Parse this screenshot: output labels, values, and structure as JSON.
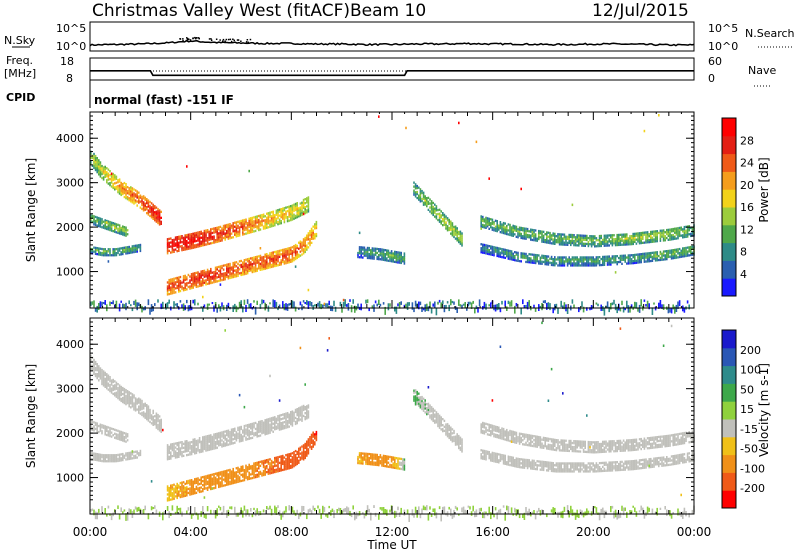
{
  "header": {
    "station": "Christmas Valley West (fitACF)",
    "beam": "Beam 10",
    "date": "12/Jul/2015"
  },
  "summary": {
    "nsky_label": "N.Sky",
    "nsearch_label": "N.Search",
    "freq_label_1": "Freq.",
    "freq_label_2": "[MHz]",
    "nave_label": "Nave",
    "cpid_label": "CPID",
    "cpid_value": "normal (fast) -151 IF",
    "noise_ticks": [
      "10^5",
      "10^0"
    ],
    "freq_ticks": [
      "18",
      "8"
    ],
    "nave_ticks": [
      "60",
      "0"
    ]
  },
  "axes": {
    "xlabel": "Time UT",
    "ylabel": "Slant Range [km]",
    "x_tick_labels": [
      "00:00",
      "04:00",
      "08:00",
      "12:00",
      "16:00",
      "20:00",
      "00:00"
    ],
    "y_tick_labels": [
      "1000",
      "2000",
      "3000",
      "4000"
    ]
  },
  "colorbars": {
    "power": {
      "title": "Power [dB]",
      "ticks": [
        "4",
        "8",
        "12",
        "16",
        "20",
        "24",
        "28"
      ],
      "colors": [
        "#1a1aff",
        "#2a5fb0",
        "#2e8b87",
        "#4fa84a",
        "#9ccc3c",
        "#f2d21a",
        "#f59d1c",
        "#ef5a18",
        "#e31f14",
        "#ff0000"
      ]
    },
    "velocity": {
      "title": "Velocity [m s-1]",
      "ticks": [
        "200",
        "100",
        "50",
        "15",
        "-15",
        "-50",
        "-100",
        "-200"
      ],
      "colors": [
        "#1a1acc",
        "#2a57b5",
        "#2e8b8b",
        "#3da84a",
        "#8fd13c",
        "#c0c0bb",
        "#f0c018",
        "#f09018",
        "#ef5a18",
        "#ff0000"
      ]
    }
  },
  "chart_data": [
    {
      "type": "line",
      "title": "N.Sky / N.Search",
      "x_unit": "hours UT",
      "xlim": [
        0,
        24
      ],
      "ylim_log10": [
        0,
        5
      ],
      "series": [
        {
          "name": "N.Sky",
          "x": [
            0,
            1,
            2,
            3,
            4,
            5,
            6,
            7,
            8,
            9,
            10,
            11,
            12,
            13,
            14,
            15,
            16,
            17,
            18,
            19,
            20,
            21,
            22,
            23,
            24
          ],
          "y_log10": [
            0.8,
            0.9,
            1.0,
            1.2,
            1.6,
            1.3,
            1.2,
            1.1,
            1.1,
            1.0,
            1.0,
            0.9,
            0.9,
            1.0,
            1.0,
            1.1,
            1.0,
            1.0,
            0.9,
            0.9,
            1.0,
            1.0,
            0.9,
            0.8,
            0.8
          ]
        }
      ]
    },
    {
      "type": "line",
      "title": "Freq. / Nave",
      "x_unit": "hours UT",
      "xlim": [
        0,
        24
      ],
      "ylim_freq_mhz": [
        8,
        18
      ],
      "series": [
        {
          "name": "Freq.",
          "x": [
            0,
            2.4,
            2.5,
            12.5,
            12.6,
            24
          ],
          "y": [
            12,
            12,
            9.5,
            9.5,
            12,
            12
          ]
        }
      ]
    },
    {
      "type": "heatmap",
      "title": "Power [dB]",
      "x_unit": "hours UT",
      "y_unit": "km",
      "xlim": [
        0,
        24
      ],
      "ylim": [
        180,
        4590
      ],
      "value_range": [
        0,
        30
      ],
      "scatter_bands": [
        {
          "t": [
            0.0,
            0.4,
            0.8,
            1.2,
            1.6,
            2.0,
            2.4,
            2.8
          ],
          "r": [
            3600,
            3300,
            3100,
            2900,
            2750,
            2600,
            2400,
            2200
          ],
          "thickness_km": 340,
          "power_db": [
            14,
            16,
            18,
            20,
            22,
            24,
            26,
            28
          ]
        },
        {
          "t": [
            0.0,
            0.5,
            1.0,
            1.5
          ],
          "r": [
            2200,
            2100,
            2000,
            1900
          ],
          "thickness_km": 220,
          "power_db": [
            12,
            12,
            14,
            14
          ]
        },
        {
          "t": [
            0.0,
            0.5,
            1.0,
            1.5,
            2.0
          ],
          "r": [
            1500,
            1450,
            1450,
            1500,
            1550
          ],
          "thickness_km": 160,
          "power_db": [
            10,
            12,
            12,
            12,
            10
          ]
        },
        {
          "t": [
            3.0,
            4.0,
            5.0,
            6.0,
            7.0,
            8.0,
            8.7
          ],
          "r": [
            1580,
            1700,
            1840,
            2000,
            2160,
            2340,
            2540
          ],
          "thickness_km": 340,
          "power_db": [
            28,
            28,
            26,
            24,
            20,
            18,
            16
          ]
        },
        {
          "t": [
            3.0,
            4.0,
            5.0,
            6.0,
            7.0,
            8.0,
            8.5,
            9.0
          ],
          "r": [
            650,
            800,
            950,
            1100,
            1250,
            1400,
            1600,
            2000
          ],
          "thickness_km": 340,
          "power_db": [
            24,
            26,
            26,
            24,
            24,
            24,
            22,
            20
          ]
        },
        {
          "t": [
            10.6,
            11.0,
            11.5,
            12.0,
            12.5
          ],
          "r": [
            1450,
            1430,
            1400,
            1350,
            1300
          ],
          "thickness_km": 240,
          "power_db": [
            8,
            10,
            10,
            12,
            10
          ]
        },
        {
          "t": [
            12.8,
            13.3,
            13.8,
            14.3,
            14.8
          ],
          "r": [
            2900,
            2600,
            2300,
            2000,
            1700
          ],
          "thickness_km": 280,
          "power_db": [
            12,
            14,
            14,
            16,
            14
          ]
        },
        {
          "t": [
            15.5,
            17.0,
            18.5,
            20.0,
            21.5,
            23.0,
            24.0
          ],
          "r": [
            2150,
            1900,
            1750,
            1700,
            1750,
            1850,
            1950
          ],
          "thickness_km": 260,
          "power_db": [
            12,
            12,
            12,
            12,
            14,
            14,
            12
          ]
        },
        {
          "t": [
            15.5,
            17.0,
            18.5,
            20.0,
            21.5,
            23.0,
            24.0
          ],
          "r": [
            1550,
            1350,
            1250,
            1250,
            1300,
            1400,
            1500
          ],
          "thickness_km": 220,
          "power_db": [
            8,
            10,
            10,
            10,
            10,
            12,
            12
          ]
        }
      ],
      "ground_scatter_range_km": [
        180,
        380
      ]
    },
    {
      "type": "heatmap",
      "title": "Velocity [m s-1]",
      "x_unit": "hours UT",
      "y_unit": "km",
      "xlim": [
        0,
        24
      ],
      "ylim": [
        180,
        4590
      ],
      "value_range": [
        -200,
        200
      ],
      "scatter_bands": [
        {
          "t": [
            0.0,
            0.4,
            0.8,
            1.2,
            1.6,
            2.0,
            2.4,
            2.8
          ],
          "r": [
            3600,
            3300,
            3100,
            2900,
            2750,
            2600,
            2400,
            2200
          ],
          "thickness_km": 340,
          "velocity": [
            0,
            0,
            0,
            0,
            0,
            0,
            0,
            0
          ]
        },
        {
          "t": [
            0.0,
            0.5,
            1.0,
            1.5
          ],
          "r": [
            2200,
            2100,
            2000,
            1900
          ],
          "thickness_km": 220,
          "velocity": [
            0,
            0,
            0,
            0
          ]
        },
        {
          "t": [
            0.0,
            0.5,
            1.0,
            1.5,
            2.0
          ],
          "r": [
            1500,
            1450,
            1450,
            1500,
            1550
          ],
          "thickness_km": 160,
          "velocity": [
            0,
            0,
            0,
            0,
            0
          ]
        },
        {
          "t": [
            3.0,
            4.0,
            5.0,
            6.0,
            7.0,
            8.0,
            8.7
          ],
          "r": [
            1580,
            1700,
            1840,
            2000,
            2160,
            2340,
            2540
          ],
          "thickness_km": 340,
          "velocity": [
            0,
            0,
            0,
            0,
            0,
            0,
            0
          ]
        },
        {
          "t": [
            3.0,
            4.0,
            5.0,
            6.0,
            7.0,
            8.0,
            8.5,
            9.0
          ],
          "r": [
            650,
            800,
            950,
            1100,
            1250,
            1400,
            1600,
            2000
          ],
          "thickness_km": 340,
          "velocity": [
            -40,
            -60,
            -70,
            -80,
            -100,
            -120,
            -160,
            -200
          ]
        },
        {
          "t": [
            10.6,
            11.0,
            11.5,
            12.0,
            12.5
          ],
          "r": [
            1450,
            1430,
            1400,
            1350,
            1300
          ],
          "thickness_km": 240,
          "velocity": [
            -50,
            -60,
            -60,
            -60,
            20
          ]
        },
        {
          "t": [
            12.8,
            13.3,
            13.8,
            14.3,
            14.8
          ],
          "r": [
            2900,
            2600,
            2300,
            2000,
            1700
          ],
          "thickness_km": 280,
          "velocity": [
            20,
            10,
            0,
            0,
            0
          ]
        },
        {
          "t": [
            15.5,
            17.0,
            18.5,
            20.0,
            21.5,
            23.0,
            24.0
          ],
          "r": [
            2150,
            1900,
            1750,
            1700,
            1750,
            1850,
            1950
          ],
          "thickness_km": 260,
          "velocity": [
            0,
            0,
            0,
            0,
            0,
            0,
            0
          ]
        },
        {
          "t": [
            15.5,
            17.0,
            18.5,
            20.0,
            21.5,
            23.0,
            24.0
          ],
          "r": [
            1550,
            1350,
            1250,
            1250,
            1300,
            1400,
            1500
          ],
          "thickness_km": 220,
          "velocity": [
            0,
            0,
            0,
            0,
            0,
            0,
            0
          ]
        }
      ],
      "ground_scatter_range_km": [
        180,
        380
      ]
    }
  ]
}
